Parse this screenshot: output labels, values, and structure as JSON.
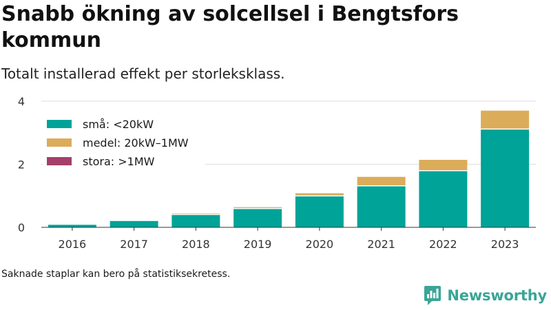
{
  "title": "Snabb ökning av solcellsel i Bengtsfors kommun",
  "subtitle": "Totalt installerad effekt per storleksklass.",
  "footnote": "Saknade staplar kan bero på statistiksekretess.",
  "brand": {
    "name": "Newsworthy",
    "color": "#3aa596"
  },
  "chart_data": {
    "type": "bar",
    "stacked": true,
    "categories": [
      "2016",
      "2017",
      "2018",
      "2019",
      "2020",
      "2021",
      "2022",
      "2023"
    ],
    "series": [
      {
        "name": "små: <20kW",
        "color": "#00a398",
        "values": [
          0.08,
          0.2,
          0.39,
          0.58,
          0.98,
          1.3,
          1.78,
          3.1
        ]
      },
      {
        "name": "medel: 20kW–1MW",
        "color": "#dbac5a",
        "values": [
          0.0,
          0.0,
          0.05,
          0.06,
          0.1,
          0.3,
          0.36,
          0.6
        ]
      },
      {
        "name": "stora: >1MW",
        "color": "#a53f6a",
        "values": [
          0,
          0,
          0,
          0,
          0,
          0,
          0,
          0
        ]
      }
    ],
    "yticks": [
      0,
      2,
      4
    ],
    "ylim": [
      0,
      4.15
    ],
    "xlabel": "",
    "ylabel": "",
    "grid": true,
    "legend": "top-left"
  }
}
